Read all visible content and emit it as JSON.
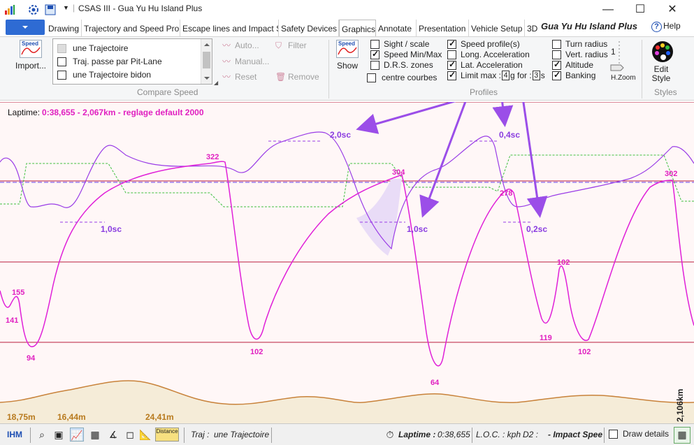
{
  "window": {
    "title": "CSAS III - Gua Yu Hu Island Plus",
    "minimize_label": "—",
    "maximize_label": "☐",
    "close_label": "✕"
  },
  "tabs": [
    {
      "label": "Drawing"
    },
    {
      "label": "Trajectory and Speed Pro"
    },
    {
      "label": "Escape lines and Impact S"
    },
    {
      "label": "Safety Devices"
    },
    {
      "label": "Graphics"
    },
    {
      "label": "Annotate"
    },
    {
      "label": "Presentation"
    },
    {
      "label": "Vehicle Setup"
    },
    {
      "label": "3D"
    }
  ],
  "track_title": "Gua Yu Hu Island Plus",
  "help_label": "Help",
  "ribbon": {
    "import_label": "Import...",
    "import_icon_text": "Speed",
    "compare_list": [
      {
        "label": "une Trajectoire",
        "checked": false,
        "disabled": true
      },
      {
        "label": "Traj. passe par Pit-Lane",
        "checked": false
      },
      {
        "label": "une Trajectoire bidon",
        "checked": false
      }
    ],
    "auto_label": "Auto...",
    "filter_label": "Filter",
    "manual_label": "Manual...",
    "reset_label": "Reset",
    "remove_label": "Remove",
    "compare_group_label": "Compare Speed",
    "show_label": "Show",
    "show_icon_text": "Speed",
    "sight_label": "Sight / scale",
    "speed_minmax_label": "Speed Min/Max",
    "drs_label": "D.R.S. zones",
    "centre_courbes_label": "centre courbes",
    "speed_profiles_label": "Speed profile(s)",
    "long_accel_label": "Long. Acceleration",
    "lat_accel_label": "Lat. Acceleration",
    "limit_max_label": "Limit max :",
    "limit_g": "4",
    "g_for_label": "g for :",
    "limit_s": "3",
    "s_label": "s",
    "turn_radius_label": "Turn radius",
    "vert_radius_label": "Vert. radius",
    "altitude_label": "Altitude",
    "banking_label": "Banking",
    "profiles_group_label": "Profiles",
    "hzoom_label": "H.Zoom",
    "hzoom_value": "1",
    "edit_style_label": "Edit Style",
    "styles_group_label": "Styles"
  },
  "graph": {
    "laptime_label": "Laptime:",
    "laptime_value": "0:38,655 - 2,067km - reglage default 2000",
    "speed_labels": [
      {
        "text": "141"
      },
      {
        "text": "155"
      },
      {
        "text": "94"
      },
      {
        "text": "322"
      },
      {
        "text": "102"
      },
      {
        "text": "304"
      },
      {
        "text": "64"
      },
      {
        "text": "278"
      },
      {
        "text": "119"
      },
      {
        "text": "102"
      },
      {
        "text": "102"
      },
      {
        "text": "302"
      }
    ],
    "time_annotations": [
      {
        "text": "1,0sc"
      },
      {
        "text": "2,0sc"
      },
      {
        "text": "1,0sc"
      },
      {
        "text": "0,4sc"
      },
      {
        "text": "0,2sc"
      }
    ],
    "distance_labels": [
      {
        "text": "18,75m"
      },
      {
        "text": "16,44m"
      },
      {
        "text": "24,41m"
      }
    ],
    "total_distance": "2,106km",
    "colors": {
      "speed": "#e020d8",
      "lat_accel": "#9a3ce6",
      "altitude": "#c8823a",
      "banking": "#3fbf3f",
      "arrows": "#9b4ee8"
    }
  },
  "statusbar": {
    "ihm_label": "IHM",
    "distance_tool_label": "Distance",
    "traj_label": "Traj :",
    "traj_value": "une Trajectoire",
    "laptime_label": "Laptime :",
    "laptime_value": "0:38,655",
    "loc_label": "L.O.C. : kph",
    "d2_label": "D2 :",
    "impact_label": "- Impact Spee",
    "draw_details_label": "Draw details"
  }
}
